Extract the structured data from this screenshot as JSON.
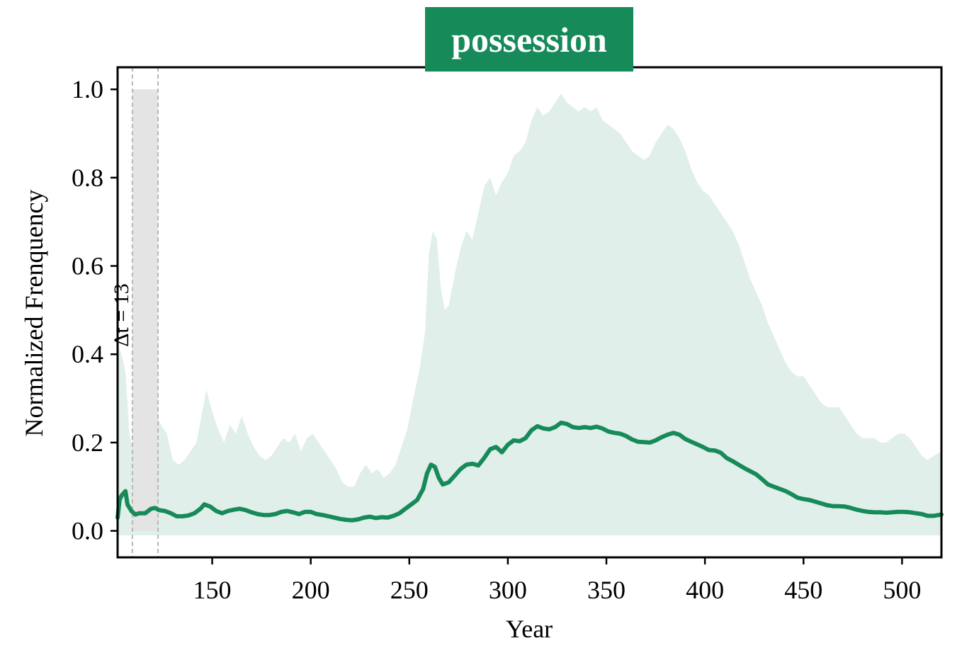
{
  "chart_data": {
    "type": "line",
    "title": "possession",
    "xlabel": "Year",
    "ylabel": "Normalized Frenquency",
    "xlim": [
      102,
      520
    ],
    "ylim": [
      -0.06,
      1.05
    ],
    "xticks": [
      150,
      200,
      250,
      300,
      350,
      400,
      450,
      500
    ],
    "yticks": [
      0.0,
      0.2,
      0.4,
      0.6,
      0.8,
      1.0
    ],
    "ytick_labels": [
      "0.0",
      "0.2",
      "0.4",
      "0.6",
      "0.8",
      "1.0"
    ],
    "highlight": {
      "start": 109.5,
      "end": 122.5,
      "ymin": 0.0,
      "ymax": 1.0,
      "label": "Δt = 13"
    },
    "colors": {
      "line": "#178a59",
      "band": "#e0efe9",
      "highlight": "#e3e3e3",
      "title_bg": "#178a59"
    },
    "band_lower": -0.01,
    "band_upper": [
      [
        102,
        0.42
      ],
      [
        104,
        0.4
      ],
      [
        106,
        0.36
      ],
      [
        108,
        0.22
      ],
      [
        110,
        0.18
      ],
      [
        113,
        0.19
      ],
      [
        116,
        0.22
      ],
      [
        119,
        0.25
      ],
      [
        121,
        0.27
      ],
      [
        124,
        0.24
      ],
      [
        127,
        0.22
      ],
      [
        130,
        0.16
      ],
      [
        133,
        0.15
      ],
      [
        136,
        0.16
      ],
      [
        139,
        0.18
      ],
      [
        142,
        0.2
      ],
      [
        145,
        0.27
      ],
      [
        147,
        0.32
      ],
      [
        150,
        0.27
      ],
      [
        153,
        0.23
      ],
      [
        156,
        0.2
      ],
      [
        159,
        0.24
      ],
      [
        162,
        0.22
      ],
      [
        165,
        0.26
      ],
      [
        168,
        0.22
      ],
      [
        171,
        0.19
      ],
      [
        174,
        0.17
      ],
      [
        177,
        0.16
      ],
      [
        180,
        0.17
      ],
      [
        183,
        0.19
      ],
      [
        186,
        0.21
      ],
      [
        189,
        0.2
      ],
      [
        192,
        0.22
      ],
      [
        195,
        0.18
      ],
      [
        198,
        0.21
      ],
      [
        201,
        0.22
      ],
      [
        204,
        0.2
      ],
      [
        207,
        0.18
      ],
      [
        210,
        0.16
      ],
      [
        213,
        0.14
      ],
      [
        216,
        0.11
      ],
      [
        219,
        0.1
      ],
      [
        222,
        0.1
      ],
      [
        225,
        0.13
      ],
      [
        228,
        0.15
      ],
      [
        231,
        0.13
      ],
      [
        234,
        0.14
      ],
      [
        237,
        0.12
      ],
      [
        240,
        0.13
      ],
      [
        243,
        0.15
      ],
      [
        246,
        0.19
      ],
      [
        249,
        0.23
      ],
      [
        252,
        0.3
      ],
      [
        255,
        0.36
      ],
      [
        258,
        0.45
      ],
      [
        260,
        0.63
      ],
      [
        262,
        0.68
      ],
      [
        264,
        0.66
      ],
      [
        266,
        0.55
      ],
      [
        268,
        0.5
      ],
      [
        270,
        0.51
      ],
      [
        273,
        0.58
      ],
      [
        276,
        0.64
      ],
      [
        279,
        0.68
      ],
      [
        282,
        0.66
      ],
      [
        285,
        0.72
      ],
      [
        288,
        0.78
      ],
      [
        291,
        0.8
      ],
      [
        294,
        0.76
      ],
      [
        297,
        0.79
      ],
      [
        300,
        0.81
      ],
      [
        303,
        0.85
      ],
      [
        306,
        0.86
      ],
      [
        309,
        0.88
      ],
      [
        312,
        0.93
      ],
      [
        315,
        0.96
      ],
      [
        318,
        0.94
      ],
      [
        321,
        0.95
      ],
      [
        324,
        0.97
      ],
      [
        327,
        0.99
      ],
      [
        330,
        0.97
      ],
      [
        333,
        0.96
      ],
      [
        336,
        0.95
      ],
      [
        339,
        0.96
      ],
      [
        342,
        0.95
      ],
      [
        345,
        0.96
      ],
      [
        348,
        0.93
      ],
      [
        351,
        0.92
      ],
      [
        354,
        0.91
      ],
      [
        357,
        0.9
      ],
      [
        360,
        0.88
      ],
      [
        363,
        0.86
      ],
      [
        366,
        0.85
      ],
      [
        369,
        0.84
      ],
      [
        372,
        0.85
      ],
      [
        375,
        0.88
      ],
      [
        378,
        0.9
      ],
      [
        381,
        0.92
      ],
      [
        384,
        0.91
      ],
      [
        387,
        0.89
      ],
      [
        390,
        0.86
      ],
      [
        393,
        0.82
      ],
      [
        396,
        0.79
      ],
      [
        399,
        0.77
      ],
      [
        402,
        0.76
      ],
      [
        405,
        0.74
      ],
      [
        408,
        0.72
      ],
      [
        411,
        0.7
      ],
      [
        414,
        0.68
      ],
      [
        417,
        0.65
      ],
      [
        420,
        0.61
      ],
      [
        423,
        0.57
      ],
      [
        426,
        0.54
      ],
      [
        429,
        0.51
      ],
      [
        432,
        0.47
      ],
      [
        435,
        0.44
      ],
      [
        438,
        0.41
      ],
      [
        441,
        0.38
      ],
      [
        444,
        0.36
      ],
      [
        447,
        0.35
      ],
      [
        450,
        0.35
      ],
      [
        453,
        0.33
      ],
      [
        456,
        0.31
      ],
      [
        459,
        0.29
      ],
      [
        462,
        0.28
      ],
      [
        465,
        0.28
      ],
      [
        468,
        0.28
      ],
      [
        471,
        0.26
      ],
      [
        474,
        0.24
      ],
      [
        477,
        0.22
      ],
      [
        480,
        0.21
      ],
      [
        483,
        0.21
      ],
      [
        486,
        0.21
      ],
      [
        489,
        0.2
      ],
      [
        492,
        0.2
      ],
      [
        495,
        0.21
      ],
      [
        498,
        0.22
      ],
      [
        501,
        0.22
      ],
      [
        504,
        0.21
      ],
      [
        507,
        0.19
      ],
      [
        510,
        0.17
      ],
      [
        513,
        0.16
      ],
      [
        516,
        0.17
      ],
      [
        520,
        0.18
      ]
    ],
    "series": [
      {
        "name": "possession",
        "points": [
          [
            102,
            0.03
          ],
          [
            103,
            0.07
          ],
          [
            104,
            0.08
          ],
          [
            106,
            0.09
          ],
          [
            107,
            0.06
          ],
          [
            109,
            0.045
          ],
          [
            111,
            0.037
          ],
          [
            113,
            0.04
          ],
          [
            116,
            0.04
          ],
          [
            119,
            0.05
          ],
          [
            121,
            0.052
          ],
          [
            123,
            0.047
          ],
          [
            126,
            0.045
          ],
          [
            129,
            0.04
          ],
          [
            132,
            0.033
          ],
          [
            135,
            0.033
          ],
          [
            138,
            0.035
          ],
          [
            141,
            0.04
          ],
          [
            144,
            0.05
          ],
          [
            146,
            0.06
          ],
          [
            149,
            0.055
          ],
          [
            152,
            0.045
          ],
          [
            155,
            0.04
          ],
          [
            158,
            0.045
          ],
          [
            161,
            0.048
          ],
          [
            164,
            0.05
          ],
          [
            167,
            0.047
          ],
          [
            170,
            0.042
          ],
          [
            173,
            0.038
          ],
          [
            176,
            0.036
          ],
          [
            179,
            0.036
          ],
          [
            182,
            0.038
          ],
          [
            185,
            0.043
          ],
          [
            188,
            0.045
          ],
          [
            191,
            0.042
          ],
          [
            194,
            0.038
          ],
          [
            197,
            0.043
          ],
          [
            200,
            0.043
          ],
          [
            203,
            0.038
          ],
          [
            206,
            0.036
          ],
          [
            209,
            0.033
          ],
          [
            212,
            0.03
          ],
          [
            215,
            0.027
          ],
          [
            218,
            0.025
          ],
          [
            221,
            0.024
          ],
          [
            224,
            0.026
          ],
          [
            227,
            0.03
          ],
          [
            230,
            0.032
          ],
          [
            233,
            0.029
          ],
          [
            236,
            0.031
          ],
          [
            239,
            0.03
          ],
          [
            242,
            0.034
          ],
          [
            245,
            0.04
          ],
          [
            248,
            0.05
          ],
          [
            251,
            0.06
          ],
          [
            254,
            0.07
          ],
          [
            257,
            0.095
          ],
          [
            259,
            0.13
          ],
          [
            261,
            0.15
          ],
          [
            263,
            0.145
          ],
          [
            265,
            0.12
          ],
          [
            267,
            0.105
          ],
          [
            270,
            0.11
          ],
          [
            273,
            0.125
          ],
          [
            276,
            0.14
          ],
          [
            279,
            0.15
          ],
          [
            282,
            0.152
          ],
          [
            285,
            0.148
          ],
          [
            288,
            0.165
          ],
          [
            291,
            0.185
          ],
          [
            294,
            0.19
          ],
          [
            297,
            0.178
          ],
          [
            300,
            0.195
          ],
          [
            303,
            0.205
          ],
          [
            306,
            0.203
          ],
          [
            309,
            0.21
          ],
          [
            312,
            0.228
          ],
          [
            315,
            0.237
          ],
          [
            318,
            0.232
          ],
          [
            321,
            0.23
          ],
          [
            324,
            0.235
          ],
          [
            327,
            0.245
          ],
          [
            330,
            0.242
          ],
          [
            333,
            0.235
          ],
          [
            336,
            0.233
          ],
          [
            339,
            0.235
          ],
          [
            342,
            0.233
          ],
          [
            345,
            0.236
          ],
          [
            348,
            0.232
          ],
          [
            351,
            0.225
          ],
          [
            354,
            0.222
          ],
          [
            357,
            0.22
          ],
          [
            360,
            0.215
          ],
          [
            363,
            0.207
          ],
          [
            366,
            0.202
          ],
          [
            369,
            0.201
          ],
          [
            372,
            0.2
          ],
          [
            375,
            0.205
          ],
          [
            378,
            0.212
          ],
          [
            381,
            0.218
          ],
          [
            384,
            0.222
          ],
          [
            387,
            0.218
          ],
          [
            390,
            0.208
          ],
          [
            393,
            0.202
          ],
          [
            396,
            0.196
          ],
          [
            399,
            0.19
          ],
          [
            402,
            0.183
          ],
          [
            405,
            0.182
          ],
          [
            408,
            0.177
          ],
          [
            411,
            0.165
          ],
          [
            414,
            0.158
          ],
          [
            417,
            0.15
          ],
          [
            420,
            0.142
          ],
          [
            423,
            0.135
          ],
          [
            426,
            0.128
          ],
          [
            429,
            0.117
          ],
          [
            432,
            0.105
          ],
          [
            435,
            0.1
          ],
          [
            438,
            0.095
          ],
          [
            441,
            0.09
          ],
          [
            444,
            0.083
          ],
          [
            447,
            0.075
          ],
          [
            450,
            0.072
          ],
          [
            453,
            0.07
          ],
          [
            456,
            0.066
          ],
          [
            459,
            0.062
          ],
          [
            462,
            0.058
          ],
          [
            465,
            0.056
          ],
          [
            468,
            0.056
          ],
          [
            471,
            0.055
          ],
          [
            474,
            0.052
          ],
          [
            477,
            0.048
          ],
          [
            480,
            0.045
          ],
          [
            483,
            0.043
          ],
          [
            486,
            0.042
          ],
          [
            489,
            0.042
          ],
          [
            492,
            0.041
          ],
          [
            495,
            0.042
          ],
          [
            498,
            0.043
          ],
          [
            501,
            0.043
          ],
          [
            504,
            0.042
          ],
          [
            507,
            0.04
          ],
          [
            510,
            0.038
          ],
          [
            513,
            0.034
          ],
          [
            516,
            0.034
          ],
          [
            520,
            0.037
          ]
        ]
      }
    ]
  }
}
